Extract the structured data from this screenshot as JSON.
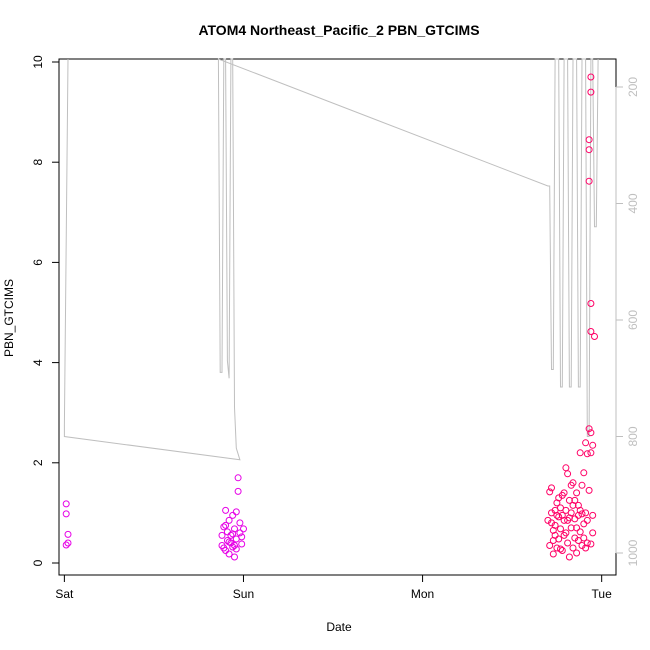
{
  "chart_data": {
    "type": "scatter",
    "title": "ATOM4 Northeast_Pacific_2 PBN_GTCIMS",
    "xlabel": "Date",
    "ylabel": "PBN_GTCIMS",
    "xlim": [
      -0.03,
      3.08
    ],
    "ylim": [
      -0.25,
      10.0
    ],
    "x_ticks": [
      0,
      1,
      2,
      3
    ],
    "x_tick_labels": [
      "Sat",
      "Sun",
      "Mon",
      "Tue"
    ],
    "y_ticks": [
      0,
      2,
      4,
      6,
      8,
      10
    ],
    "y2_lim": [
      1030,
      150
    ],
    "y2_ticks": [
      200,
      400,
      600,
      800,
      1000
    ],
    "grid": false,
    "colors": {
      "early": "#e600e6",
      "late": "#ff0066",
      "line": "#bfbfbf"
    },
    "series": [
      {
        "axis": "left",
        "points": [
          [
            0.01,
            1.18
          ],
          [
            0.01,
            0.98
          ],
          [
            0.02,
            0.57
          ],
          [
            0.02,
            0.4
          ],
          [
            0.01,
            0.36
          ],
          [
            0.88,
            0.55
          ],
          [
            0.88,
            0.35
          ],
          [
            0.89,
            0.3
          ],
          [
            0.89,
            0.72
          ],
          [
            0.9,
            1.05
          ],
          [
            0.9,
            0.25
          ],
          [
            0.91,
            0.45
          ],
          [
            0.91,
            0.62
          ],
          [
            0.92,
            0.18
          ],
          [
            0.92,
            0.85
          ],
          [
            0.93,
            0.4
          ],
          [
            0.93,
            0.55
          ],
          [
            0.94,
            0.32
          ],
          [
            0.94,
            0.95
          ],
          [
            0.95,
            0.12
          ],
          [
            0.95,
            0.68
          ],
          [
            0.96,
            0.48
          ],
          [
            0.96,
            0.28
          ],
          [
            0.97,
            1.7
          ],
          [
            0.97,
            1.43
          ],
          [
            0.98,
            0.8
          ],
          [
            0.98,
            0.6
          ],
          [
            0.99,
            0.38
          ],
          [
            0.99,
            0.52
          ],
          [
            1.0,
            0.68
          ],
          [
            0.9,
            0.75
          ],
          [
            0.92,
            0.42
          ],
          [
            0.94,
            0.58
          ],
          [
            0.96,
            1.02
          ],
          [
            0.95,
            0.35
          ]
        ]
      },
      {
        "axis": "left",
        "points": [
          [
            2.7,
            0.85
          ],
          [
            2.71,
            1.42
          ],
          [
            2.71,
            0.35
          ],
          [
            2.72,
            1.5
          ],
          [
            2.72,
            0.8
          ],
          [
            2.73,
            0.65
          ],
          [
            2.73,
            0.18
          ],
          [
            2.74,
            1.05
          ],
          [
            2.74,
            0.55
          ],
          [
            2.75,
            0.3
          ],
          [
            2.75,
            1.2
          ],
          [
            2.76,
            0.92
          ],
          [
            2.76,
            0.48
          ],
          [
            2.77,
            0.68
          ],
          [
            2.77,
            1.1
          ],
          [
            2.78,
            0.25
          ],
          [
            2.78,
            1.35
          ],
          [
            2.79,
            0.85
          ],
          [
            2.79,
            0.55
          ],
          [
            2.8,
            1.05
          ],
          [
            2.8,
            1.9
          ],
          [
            2.81,
            1.78
          ],
          [
            2.81,
            0.4
          ],
          [
            2.82,
            1.25
          ],
          [
            2.82,
            0.12
          ],
          [
            2.83,
            0.7
          ],
          [
            2.83,
            1.0
          ],
          [
            2.84,
            0.3
          ],
          [
            2.84,
            1.6
          ],
          [
            2.85,
            0.88
          ],
          [
            2.85,
            0.5
          ],
          [
            2.86,
            1.4
          ],
          [
            2.86,
            0.2
          ],
          [
            2.87,
            0.95
          ],
          [
            2.87,
            1.15
          ],
          [
            2.88,
            0.62
          ],
          [
            2.88,
            2.2
          ],
          [
            2.89,
            1.55
          ],
          [
            2.89,
            0.35
          ],
          [
            2.9,
            1.8
          ],
          [
            2.9,
            0.78
          ],
          [
            2.91,
            1.0
          ],
          [
            2.91,
            2.4
          ],
          [
            2.92,
            0.4
          ],
          [
            2.92,
            2.18
          ],
          [
            2.93,
            1.45
          ],
          [
            2.93,
            2.68
          ],
          [
            2.94,
            2.6
          ],
          [
            2.94,
            2.2
          ],
          [
            2.95,
            0.6
          ],
          [
            2.95,
            2.35
          ],
          [
            2.93,
            8.45
          ],
          [
            2.93,
            8.25
          ],
          [
            2.93,
            7.62
          ],
          [
            2.94,
            9.7
          ],
          [
            2.94,
            9.4
          ],
          [
            2.94,
            5.18
          ],
          [
            2.94,
            4.62
          ],
          [
            2.96,
            4.52
          ],
          [
            2.72,
            1.0
          ],
          [
            2.74,
            0.75
          ],
          [
            2.76,
            1.3
          ],
          [
            2.78,
            0.95
          ],
          [
            2.8,
            0.6
          ],
          [
            2.82,
            0.9
          ],
          [
            2.84,
            1.15
          ],
          [
            2.86,
            0.7
          ],
          [
            2.88,
            1.05
          ],
          [
            2.9,
            0.5
          ],
          [
            2.92,
            0.85
          ],
          [
            2.94,
            0.38
          ],
          [
            2.73,
            0.45
          ],
          [
            2.75,
            0.95
          ],
          [
            2.77,
            0.28
          ],
          [
            2.79,
            1.4
          ],
          [
            2.81,
            0.85
          ],
          [
            2.83,
            1.55
          ],
          [
            2.85,
            1.25
          ],
          [
            2.87,
            0.45
          ],
          [
            2.89,
            0.98
          ],
          [
            2.91,
            0.3
          ],
          [
            2.95,
            0.95
          ]
        ]
      },
      {
        "axis": "right",
        "points": [
          [
            0.02,
            143
          ],
          [
            0.0,
            780
          ],
          [
            0.0,
            800
          ],
          [
            0.98,
            840
          ],
          [
            0.98,
            840
          ],
          [
            0.96,
            820
          ],
          [
            0.95,
            750
          ],
          [
            0.94,
            150
          ],
          [
            0.93,
            150
          ],
          [
            0.92,
            700
          ],
          [
            0.91,
            670
          ],
          [
            0.9,
            150
          ],
          [
            0.89,
            150
          ],
          [
            0.88,
            690
          ],
          [
            0.87,
            690
          ],
          [
            0.86,
            150
          ],
          [
            2.7,
            370
          ],
          [
            2.71,
            370
          ],
          [
            2.72,
            685
          ],
          [
            2.73,
            685
          ],
          [
            2.74,
            150
          ],
          [
            2.76,
            150
          ],
          [
            2.77,
            715
          ],
          [
            2.78,
            715
          ],
          [
            2.79,
            150
          ],
          [
            2.81,
            150
          ],
          [
            2.82,
            715
          ],
          [
            2.83,
            715
          ],
          [
            2.84,
            150
          ],
          [
            2.86,
            150
          ],
          [
            2.87,
            715
          ],
          [
            2.88,
            715
          ],
          [
            2.89,
            150
          ],
          [
            2.91,
            150
          ],
          [
            2.92,
            800
          ],
          [
            2.93,
            800
          ],
          [
            2.94,
            150
          ],
          [
            2.95,
            150
          ],
          [
            2.96,
            440
          ],
          [
            2.97,
            440
          ],
          [
            2.98,
            150
          ]
        ]
      }
    ]
  }
}
